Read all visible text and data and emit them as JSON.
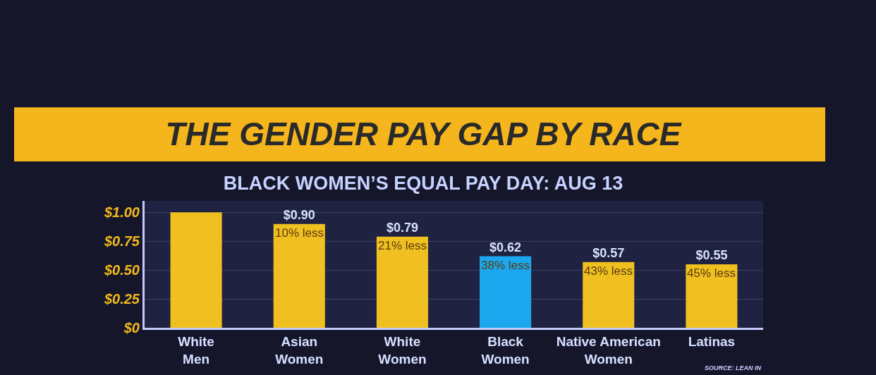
{
  "chart_data": {
    "type": "bar",
    "title": "THE GENDER PAY GAP BY RACE",
    "subtitle": "BLACK WOMEN’S EQUAL PAY DAY: AUG 13",
    "categories": [
      "White Men",
      "Asian Women",
      "White Women",
      "Black Women",
      "Native American Women",
      "Latinas"
    ],
    "values": [
      1.0,
      0.9,
      0.79,
      0.62,
      0.57,
      0.55
    ],
    "colors": [
      "#f0c020",
      "#f0c020",
      "#f0c020",
      "#1aa7ee",
      "#f0c020",
      "#f0c020"
    ],
    "value_labels": [
      null,
      "$0.90",
      "$0.79",
      "$0.62",
      "$0.57",
      "$0.55"
    ],
    "annotations": [
      {
        "text": "10% less",
        "x": "Asian Women",
        "y": 0.9
      },
      {
        "text": "21% less",
        "x": "White Women",
        "y": 0.79
      },
      {
        "text": "38% less",
        "x": "Black Women",
        "y": 0.62
      },
      {
        "text": "43% less",
        "x": "Native American Women",
        "y": 0.57
      },
      {
        "text": "45% less",
        "x": "Latinas",
        "y": 0.55
      },
      "SOURCE: LEAN IN"
    ],
    "ylim": [
      0,
      1.1
    ],
    "yticks": [
      {
        "value": 0,
        "label": "$0"
      },
      {
        "value": 0.25,
        "label": "$0.25"
      },
      {
        "value": 0.5,
        "label": "$0.50"
      },
      {
        "value": 0.75,
        "label": "$0.75"
      },
      {
        "value": 1,
        "label": "$1.00"
      }
    ],
    "grid": "y"
  }
}
